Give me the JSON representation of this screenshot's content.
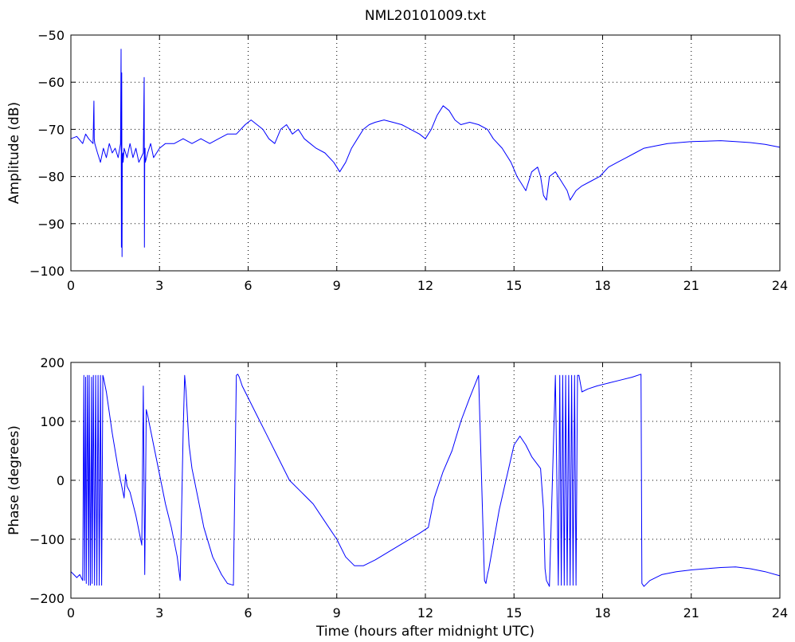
{
  "chart_data": [
    {
      "type": "line",
      "title": "NML20101009.txt",
      "xlabel": "",
      "ylabel": "Amplitude (dB)",
      "xlim": [
        0,
        24
      ],
      "ylim": [
        -100,
        -50
      ],
      "xticks": [
        0,
        3,
        6,
        9,
        12,
        15,
        18,
        21,
        24
      ],
      "yticks": [
        -100,
        -90,
        -80,
        -70,
        -60,
        -50
      ],
      "xtick_labels": [
        "0",
        "3",
        "6",
        "9",
        "12",
        "15",
        "18",
        "21",
        "24"
      ],
      "ytick_labels": [
        "−100",
        "−90",
        "−80",
        "−70",
        "−60",
        "−50"
      ],
      "grid": true,
      "series": [
        {
          "color": "#0000ff",
          "x": [
            0,
            0.2,
            0.4,
            0.5,
            0.6,
            0.75,
            0.78,
            0.79,
            0.81,
            0.9,
            1.0,
            1.1,
            1.2,
            1.3,
            1.4,
            1.5,
            1.6,
            1.68,
            1.7,
            1.71,
            1.72,
            1.73,
            1.74,
            1.76,
            1.77,
            1.8,
            1.9,
            2.0,
            2.1,
            2.2,
            2.3,
            2.45,
            2.48,
            2.49,
            2.5,
            2.51,
            2.52,
            2.6,
            2.7,
            2.8,
            3.0,
            3.2,
            3.5,
            3.8,
            4.1,
            4.4,
            4.7,
            5.0,
            5.3,
            5.6,
            5.9,
            6.1,
            6.3,
            6.5,
            6.7,
            6.9,
            7.1,
            7.3,
            7.5,
            7.7,
            7.9,
            8.1,
            8.3,
            8.6,
            8.9,
            9.1,
            9.3,
            9.5,
            9.7,
            9.9,
            10.1,
            10.3,
            10.6,
            10.9,
            11.2,
            11.5,
            11.8,
            12.0,
            12.2,
            12.4,
            12.6,
            12.8,
            13.0,
            13.2,
            13.5,
            13.8,
            14.1,
            14.3,
            14.6,
            14.9,
            15.1,
            15.3,
            15.4,
            15.6,
            15.8,
            15.9,
            16.0,
            16.1,
            16.2,
            16.4,
            16.6,
            16.8,
            16.9,
            17.1,
            17.3,
            17.6,
            17.9,
            18.2,
            18.5,
            18.8,
            19.1,
            19.4,
            19.8,
            20.2,
            20.6,
            21.0,
            21.5,
            22.0,
            22.5,
            23.0,
            23.5,
            24.0
          ],
          "y": [
            -72,
            -71.5,
            -73,
            -71,
            -72,
            -73,
            -64,
            -72,
            -73,
            -75,
            -77,
            -74,
            -76,
            -73,
            -75,
            -74,
            -76,
            -73,
            -53,
            -95,
            -58,
            -97,
            -76,
            -75,
            -77,
            -74,
            -76,
            -73,
            -76,
            -74,
            -77,
            -75,
            -59,
            -95,
            -76,
            -74,
            -77,
            -75,
            -73,
            -76,
            -74,
            -73,
            -73,
            -72,
            -73,
            -72,
            -73,
            -72,
            -71,
            -71,
            -69,
            -68,
            -69,
            -70,
            -72,
            -73,
            -70,
            -69,
            -71,
            -70,
            -72,
            -73,
            -74,
            -75,
            -77,
            -79,
            -77,
            -74,
            -72,
            -70,
            -69,
            -68.5,
            -68,
            -68.5,
            -69,
            -70,
            -71,
            -72,
            -70,
            -67,
            -65,
            -66,
            -68,
            -69,
            -68.5,
            -69,
            -70,
            -72,
            -74,
            -77,
            -80,
            -82,
            -83,
            -79,
            -78,
            -80,
            -84,
            -85,
            -80,
            -79,
            -81,
            -83,
            -85,
            -83,
            -82,
            -81,
            -80,
            -78,
            -77,
            -76,
            -75,
            -74,
            -73.5,
            -73,
            -72.8,
            -72.6,
            -72.5,
            -72.4,
            -72.6,
            -72.8,
            -73.2,
            -73.8
          ]
        }
      ]
    },
    {
      "type": "line",
      "title": "",
      "xlabel": "Time (hours after midnight UTC)",
      "ylabel": "Phase (degrees)",
      "xlim": [
        0,
        24
      ],
      "ylim": [
        -200,
        200
      ],
      "xticks": [
        0,
        3,
        6,
        9,
        12,
        15,
        18,
        21,
        24
      ],
      "yticks": [
        -200,
        -100,
        0,
        100,
        200
      ],
      "xtick_labels": [
        "0",
        "3",
        "6",
        "9",
        "12",
        "15",
        "18",
        "21",
        "24"
      ],
      "ytick_labels": [
        "−200",
        "−100",
        "0",
        "100",
        "200"
      ],
      "grid": true,
      "series": [
        {
          "color": "#0000ff",
          "x": [
            0,
            0.1,
            0.2,
            0.3,
            0.4,
            0.44,
            0.46,
            0.5,
            0.52,
            0.56,
            0.6,
            0.62,
            0.66,
            0.7,
            0.72,
            0.76,
            0.8,
            0.84,
            0.88,
            0.92,
            0.96,
            1.0,
            1.04,
            1.08,
            1.1,
            1.2,
            1.4,
            1.6,
            1.8,
            1.85,
            1.9,
            2.0,
            2.2,
            2.4,
            2.45,
            2.5,
            2.55,
            2.6,
            2.8,
            3.0,
            3.2,
            3.4,
            3.6,
            3.7,
            3.8,
            3.85,
            3.9,
            4.0,
            4.1,
            4.3,
            4.5,
            4.8,
            5.1,
            5.3,
            5.5,
            5.6,
            5.65,
            5.7,
            5.8,
            6.0,
            6.3,
            6.6,
            7.0,
            7.4,
            7.8,
            8.2,
            8.6,
            9.0,
            9.3,
            9.6,
            9.9,
            10.3,
            10.8,
            11.3,
            11.8,
            12.1,
            12.3,
            12.6,
            12.9,
            13.2,
            13.5,
            13.8,
            14.0,
            14.05,
            14.1,
            14.15,
            14.5,
            15.0,
            15.2,
            15.4,
            15.6,
            15.9,
            16.0,
            16.05,
            16.1,
            16.2,
            16.4,
            16.5,
            16.55,
            16.6,
            16.65,
            16.7,
            16.75,
            16.8,
            16.85,
            16.9,
            16.95,
            17.0,
            17.05,
            17.1,
            17.15,
            17.2,
            17.3,
            17.5,
            17.8,
            18.2,
            18.6,
            19.0,
            19.3,
            19.33,
            19.4,
            19.6,
            20.0,
            20.5,
            21.0,
            21.5,
            22.0,
            22.5,
            23.0,
            23.5,
            24.0
          ],
          "y": [
            -155,
            -160,
            -165,
            -160,
            -170,
            178,
            -170,
            175,
            -175,
            178,
            -178,
            178,
            -178,
            175,
            -175,
            178,
            -178,
            178,
            -178,
            178,
            -178,
            178,
            -178,
            178,
            175,
            150,
            80,
            20,
            -30,
            10,
            -10,
            -20,
            -60,
            -110,
            160,
            -160,
            120,
            110,
            60,
            10,
            -40,
            -80,
            -130,
            -170,
            80,
            178,
            150,
            60,
            20,
            -30,
            -80,
            -130,
            -160,
            -175,
            -178,
            178,
            180,
            175,
            160,
            140,
            110,
            80,
            40,
            0,
            -20,
            -40,
            -70,
            -100,
            -130,
            -145,
            -145,
            -135,
            -120,
            -105,
            -90,
            -80,
            -30,
            15,
            50,
            100,
            140,
            178,
            -170,
            -175,
            -160,
            -150,
            -50,
            60,
            75,
            60,
            40,
            20,
            -50,
            -150,
            -170,
            -180,
            178,
            -178,
            178,
            -178,
            178,
            -178,
            178,
            -178,
            178,
            -178,
            178,
            -178,
            178,
            -178,
            178,
            178,
            150,
            155,
            160,
            165,
            170,
            175,
            180,
            -175,
            -180,
            -170,
            -160,
            -155,
            -152,
            -150,
            -148,
            -147,
            -150,
            -155,
            -162
          ]
        }
      ]
    }
  ]
}
